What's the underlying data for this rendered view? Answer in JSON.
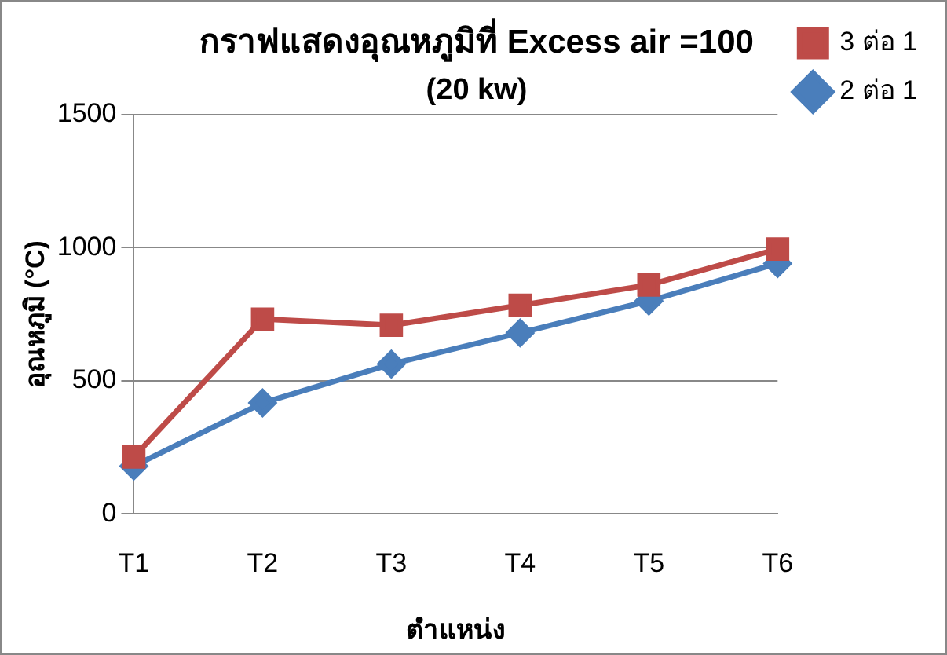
{
  "chart_data": {
    "type": "line",
    "title": "กราฟแสดงอุณหภูมิที่ Excess air =100",
    "subtitle": "(20 kw)",
    "xlabel": "ตำแหน่ง",
    "ylabel": "อุณหภูมิ (°C)",
    "categories": [
      "T1",
      "T2",
      "T3",
      "T4",
      "T5",
      "T6"
    ],
    "series": [
      {
        "name": "2 ต่อ 1",
        "color": "#4a7ebb",
        "marker": "diamond",
        "values": [
          180,
          417,
          563,
          680,
          800,
          941
        ]
      },
      {
        "name": "3 ต่อ 1",
        "color": "#be4b48",
        "marker": "square",
        "values": [
          214,
          732,
          709,
          784,
          860,
          995
        ]
      }
    ],
    "ylim": [
      0,
      1500
    ],
    "yticks": [
      0,
      500,
      1000,
      1500
    ],
    "grid": "y",
    "legend": "right"
  }
}
